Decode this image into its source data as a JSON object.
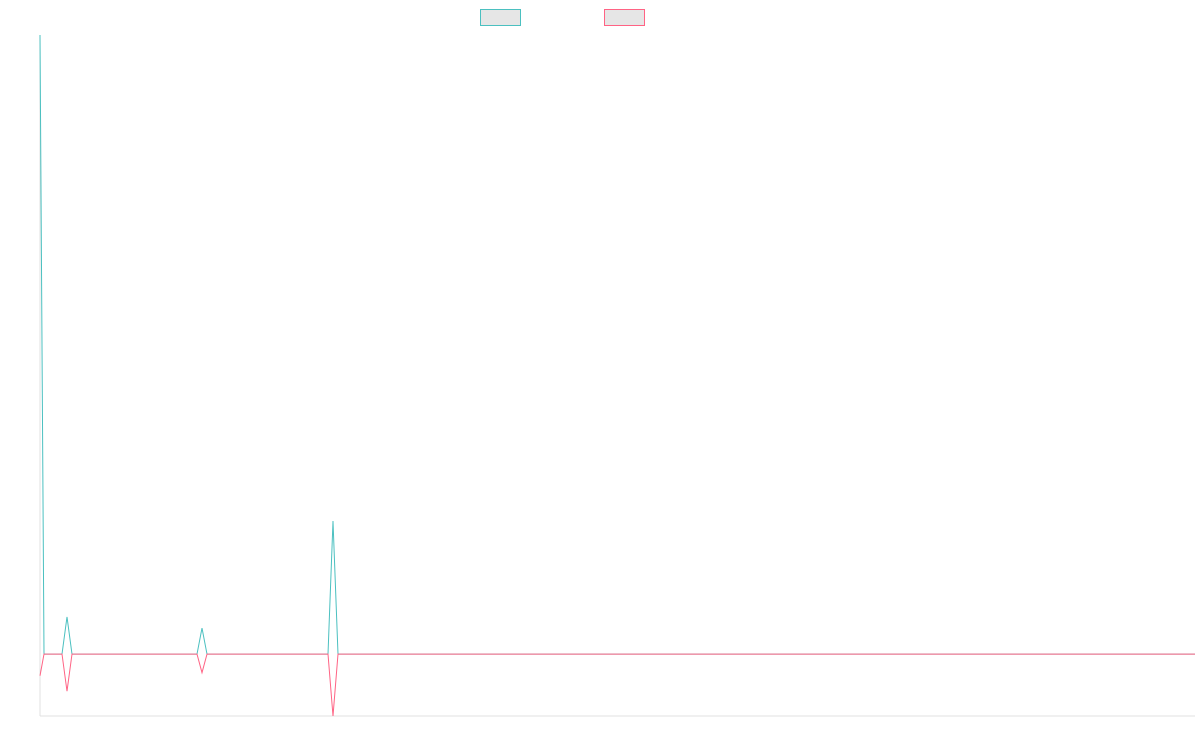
{
  "chart_data": {
    "type": "line",
    "x": [
      0,
      4,
      22,
      27,
      32,
      157,
      162,
      167,
      288,
      293,
      298,
      1155
    ],
    "series": [
      {
        "color": "#4bc0c0",
        "values": [
          100,
          0,
          0,
          6,
          0,
          0,
          4.2,
          0,
          0,
          21.5,
          0,
          0
        ]
      },
      {
        "color": "#ff6384",
        "values": [
          -3.5,
          0,
          0,
          -6,
          0,
          0,
          -3,
          0,
          0,
          -10,
          0,
          0
        ]
      }
    ],
    "xlim": [
      0,
      1155
    ],
    "ylim": [
      -10,
      100
    ],
    "legend": "top"
  }
}
